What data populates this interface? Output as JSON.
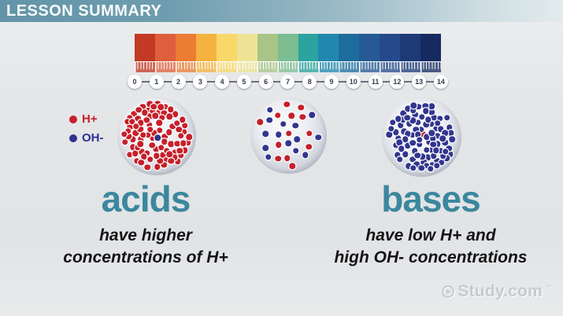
{
  "header": {
    "title": "LESSON SUMMARY"
  },
  "ph_scale": {
    "labels": [
      "0",
      "1",
      "2",
      "3",
      "4",
      "5",
      "6",
      "7",
      "8",
      "9",
      "10",
      "11",
      "12",
      "13",
      "14"
    ],
    "block_colors": [
      "#c23a23",
      "#df5f3d",
      "#ec7c33",
      "#f5b23e",
      "#f8d869",
      "#eee394",
      "#a9c487",
      "#7cbd92",
      "#2ba49f",
      "#2088ae",
      "#1d6d9c",
      "#265a95",
      "#26498b",
      "#1d3a77",
      "#152a60"
    ]
  },
  "legend": {
    "h_plus": {
      "label": "H+",
      "color": "#c5202a"
    },
    "oh_minus": {
      "label": "OH-",
      "color": "#2d3192"
    }
  },
  "spheres": [
    {
      "name": "acidic-solution",
      "seed": 7,
      "dots": [
        {
          "color": "#c5202a",
          "count": 88
        },
        {
          "color": "#32368e",
          "count": 1
        }
      ]
    },
    {
      "name": "neutral-solution",
      "seed": 11,
      "dots": [
        {
          "color": "#c5202a",
          "count": 13
        },
        {
          "color": "#32368e",
          "count": 14
        }
      ]
    },
    {
      "name": "basic-solution",
      "seed": 23,
      "dots": [
        {
          "color": "#32368e",
          "count": 88
        },
        {
          "color": "#c5202a",
          "count": 1
        }
      ]
    }
  ],
  "acids": {
    "heading": "acids",
    "line1": "have higher",
    "line2": "concentrations of H+"
  },
  "bases": {
    "heading": "bases",
    "line1": "have low H+ and",
    "line2": "high OH- concentrations"
  },
  "watermark": {
    "text": "Study.com",
    "tm": "™"
  }
}
